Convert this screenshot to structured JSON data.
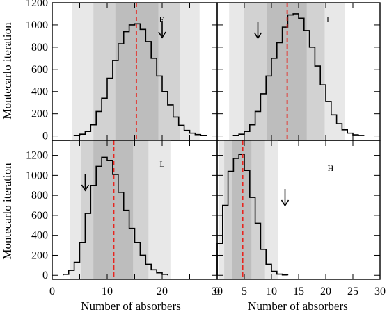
{
  "colors": {
    "band_outer": "#e8e8e8",
    "band_middle": "#d2d2d2",
    "band_inner": "#bdbdbd",
    "histogram": "#000000",
    "median_line": "#e8241e",
    "frame": "#000000"
  },
  "chart_data": {
    "type": "panel-histograms",
    "grid": false,
    "x": {
      "label": "Number of absorbers",
      "range": [
        0,
        30
      ],
      "ticks": [
        0,
        5,
        10,
        15,
        20,
        25,
        30
      ],
      "tick_labels_left": [
        "0",
        "10",
        "20",
        "30"
      ],
      "tick_labels_right": [
        "0",
        "5",
        "10",
        "15",
        "20",
        "25",
        "30"
      ]
    },
    "y": {
      "label": "Montecarlo iteration",
      "top_row": {
        "range": [
          -40,
          1200
        ],
        "ticks": [
          0,
          200,
          400,
          600,
          800,
          1000,
          1200
        ],
        "tick_labels": [
          "0",
          "200",
          "400",
          "600",
          "800",
          "1000",
          "1200"
        ]
      },
      "bottom_row": {
        "range": [
          -40,
          1350
        ],
        "ticks": [
          0,
          200,
          400,
          600,
          800,
          1000,
          1200
        ],
        "tick_labels": [
          "0",
          "200",
          "400",
          "600",
          "800",
          "1000",
          "1200"
        ]
      }
    },
    "panels": [
      {
        "label": "F",
        "median": 15.3,
        "observed_arrow": 20,
        "bands": {
          "outer": [
            3.6,
            26.8
          ],
          "middle": [
            7.5,
            23.2
          ],
          "inner": [
            11.5,
            19.3
          ]
        },
        "bins": {
          "start": 4,
          "width": 1,
          "counts": [
            5,
            15,
            40,
            100,
            220,
            340,
            520,
            680,
            830,
            940,
            1000,
            1010,
            960,
            850,
            700,
            540,
            400,
            280,
            170,
            95,
            50,
            25,
            12,
            5
          ]
        }
      },
      {
        "label": "I",
        "median": 12.9,
        "observed_arrow": 7.5,
        "bands": {
          "outer": [
            2.2,
            23.5
          ],
          "middle": [
            5.0,
            19.8
          ],
          "inner": [
            9.2,
            16.5
          ]
        },
        "bins": {
          "start": 3,
          "width": 1,
          "counts": [
            5,
            15,
            40,
            100,
            220,
            380,
            540,
            700,
            840,
            980,
            1090,
            1100,
            1060,
            950,
            800,
            630,
            460,
            310,
            190,
            110,
            55,
            25,
            10,
            4
          ]
        }
      },
      {
        "label": "L",
        "median": 11.2,
        "observed_arrow": 6,
        "bands": {
          "outer": [
            3.2,
            21.5
          ],
          "middle": [
            5.2,
            17.5
          ],
          "inner": [
            7.5,
            14.7
          ]
        },
        "bins": {
          "start": 2,
          "width": 1,
          "counts": [
            10,
            50,
            130,
            330,
            620,
            900,
            1090,
            1180,
            1150,
            1010,
            830,
            650,
            470,
            330,
            200,
            110,
            55,
            25,
            10
          ]
        }
      },
      {
        "label": "H",
        "median": 4.7,
        "observed_arrow": 12.5,
        "bands": {
          "outer": [
            0.3,
            11.2
          ],
          "middle": [
            1.3,
            8.8
          ],
          "inner": [
            2.8,
            6.3
          ]
        },
        "bins": {
          "start": 0,
          "width": 1,
          "counts": [
            320,
            700,
            1040,
            1170,
            1210,
            1050,
            780,
            520,
            260,
            110,
            40,
            12,
            4
          ]
        }
      }
    ]
  }
}
